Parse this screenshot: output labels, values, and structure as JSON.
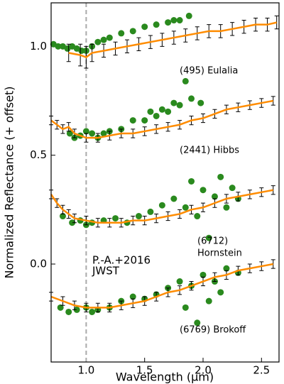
{
  "chart_data": {
    "type": "scatter",
    "xlabel": "Wavelength (μm)",
    "ylabel": "Normalized Reflectance (+ offset)",
    "xlim": [
      0.7,
      2.65
    ],
    "ylim": [
      -0.45,
      1.2
    ],
    "xticks": [
      {
        "value": 1.0,
        "label": "1.0"
      },
      {
        "value": 1.5,
        "label": "1.5"
      },
      {
        "value": 2.0,
        "label": "2.0"
      },
      {
        "value": 2.5,
        "label": "2.5"
      }
    ],
    "yticks": [
      {
        "value": 0.0,
        "label": "0.0"
      },
      {
        "value": 0.5,
        "label": "0.5"
      },
      {
        "value": 1.0,
        "label": "1.0"
      }
    ],
    "vlines": [
      1.0
    ],
    "annotations": [
      "(495) Eulalia",
      "(2441) Hibbs",
      "(6712)",
      "Hornstein",
      "(6769) Brokoff"
    ],
    "series": [
      {
        "name": "P.-A.+2016",
        "type": "scatter",
        "color": "#2a8a1e",
        "x": [
          0.72,
          0.76,
          0.8,
          0.84,
          0.88,
          0.92,
          0.96,
          1.0,
          1.05,
          1.1,
          1.15,
          1.2,
          1.3,
          1.4,
          1.5,
          1.6,
          1.7,
          1.75,
          1.8,
          1.88
        ],
        "values": [
          1.01,
          1.0,
          1.0,
          0.99,
          1.0,
          0.99,
          0.98,
          0.98,
          1.0,
          1.02,
          1.03,
          1.04,
          1.06,
          1.07,
          1.09,
          1.1,
          1.11,
          1.12,
          1.12,
          1.14
        ]
      },
      {
        "name": "JWST",
        "type": "line",
        "color": "#ff8c00",
        "x": [
          0.85,
          0.95,
          1.0,
          1.05,
          1.15,
          1.25,
          1.35,
          1.45,
          1.55,
          1.65,
          1.75,
          1.85,
          1.95,
          2.05,
          2.15,
          2.25,
          2.35,
          2.45,
          2.55,
          2.63
        ],
        "values": [
          0.97,
          0.96,
          0.95,
          0.97,
          0.98,
          0.99,
          1.0,
          1.01,
          1.02,
          1.03,
          1.04,
          1.05,
          1.06,
          1.07,
          1.07,
          1.08,
          1.09,
          1.1,
          1.1,
          1.11
        ],
        "errors": [
          0.04,
          0.05,
          0.05,
          0.04,
          0.03,
          0.03,
          0.03,
          0.03,
          0.03,
          0.03,
          0.03,
          0.03,
          0.03,
          0.03,
          0.03,
          0.03,
          0.03,
          0.03,
          0.03,
          0.03
        ]
      },
      {
        "name": "P.-A.+2016",
        "type": "scatter",
        "color": "#2a8a1e",
        "x": [
          0.86,
          0.9,
          0.95,
          1.0,
          1.05,
          1.1,
          1.15,
          1.2,
          1.3,
          1.4,
          1.5,
          1.55,
          1.6,
          1.65,
          1.7,
          1.75,
          1.8,
          1.85,
          1.9,
          1.98
        ],
        "values": [
          0.6,
          0.58,
          0.59,
          0.61,
          0.6,
          0.58,
          0.6,
          0.61,
          0.62,
          0.66,
          0.66,
          0.7,
          0.68,
          0.71,
          0.7,
          0.74,
          0.73,
          0.84,
          0.76,
          0.74
        ]
      },
      {
        "name": "JWST",
        "type": "line",
        "color": "#ff8c00",
        "x": [
          0.7,
          0.75,
          0.8,
          0.85,
          0.9,
          1.0,
          1.1,
          1.2,
          1.3,
          1.4,
          1.5,
          1.6,
          1.7,
          1.8,
          1.9,
          2.0,
          2.1,
          2.2,
          2.3,
          2.4,
          2.5,
          2.6
        ],
        "values": [
          0.66,
          0.64,
          0.62,
          0.63,
          0.6,
          0.58,
          0.58,
          0.59,
          0.6,
          0.6,
          0.61,
          0.62,
          0.63,
          0.64,
          0.66,
          0.67,
          0.69,
          0.71,
          0.72,
          0.73,
          0.74,
          0.75
        ],
        "errors": [
          0.02,
          0.02,
          0.02,
          0.02,
          0.02,
          0.02,
          0.02,
          0.02,
          0.02,
          0.02,
          0.02,
          0.02,
          0.02,
          0.02,
          0.02,
          0.02,
          0.02,
          0.02,
          0.02,
          0.02,
          0.02,
          0.02
        ]
      },
      {
        "name": "P.-A.+2016",
        "type": "scatter",
        "color": "#2a8a1e",
        "x": [
          0.8,
          0.88,
          0.95,
          1.0,
          1.05,
          1.15,
          1.25,
          1.35,
          1.45,
          1.55,
          1.65,
          1.75,
          1.85,
          1.9,
          1.95,
          2.0,
          2.05,
          2.1,
          2.15,
          2.2,
          2.25,
          2.3
        ],
        "values": [
          0.22,
          0.19,
          0.2,
          0.18,
          0.19,
          0.2,
          0.21,
          0.19,
          0.22,
          0.24,
          0.27,
          0.3,
          0.26,
          0.38,
          0.22,
          0.34,
          0.12,
          0.31,
          0.4,
          0.26,
          0.35,
          0.3
        ]
      },
      {
        "name": "JWST",
        "type": "line",
        "color": "#ff8c00",
        "x": [
          0.7,
          0.75,
          0.8,
          0.85,
          0.9,
          1.0,
          1.1,
          1.2,
          1.3,
          1.4,
          1.5,
          1.6,
          1.7,
          1.8,
          1.9,
          2.0,
          2.1,
          2.2,
          2.3,
          2.4,
          2.5,
          2.6
        ],
        "values": [
          0.32,
          0.28,
          0.25,
          0.23,
          0.21,
          0.2,
          0.19,
          0.19,
          0.19,
          0.2,
          0.2,
          0.21,
          0.22,
          0.23,
          0.25,
          0.26,
          0.28,
          0.3,
          0.31,
          0.32,
          0.33,
          0.34
        ],
        "errors": [
          0.02,
          0.02,
          0.02,
          0.02,
          0.02,
          0.02,
          0.02,
          0.02,
          0.02,
          0.02,
          0.02,
          0.02,
          0.02,
          0.02,
          0.02,
          0.02,
          0.02,
          0.02,
          0.02,
          0.02,
          0.02,
          0.02
        ]
      },
      {
        "name": "P.-A.+2016",
        "type": "scatter",
        "color": "#2a8a1e",
        "x": [
          0.78,
          0.85,
          0.92,
          1.0,
          1.05,
          1.1,
          1.2,
          1.3,
          1.4,
          1.5,
          1.6,
          1.7,
          1.8,
          1.85,
          1.9,
          1.95,
          2.0,
          2.05,
          2.1,
          2.15,
          2.2,
          2.3
        ],
        "values": [
          -0.2,
          -0.22,
          -0.21,
          -0.2,
          -0.22,
          -0.21,
          -0.2,
          -0.17,
          -0.15,
          -0.16,
          -0.14,
          -0.11,
          -0.08,
          -0.2,
          -0.1,
          -0.27,
          -0.05,
          -0.17,
          -0.08,
          -0.13,
          -0.02,
          -0.04
        ]
      },
      {
        "name": "JWST",
        "type": "line",
        "color": "#ff8c00",
        "x": [
          0.7,
          0.8,
          0.9,
          1.0,
          1.1,
          1.2,
          1.3,
          1.4,
          1.5,
          1.6,
          1.7,
          1.8,
          1.9,
          2.0,
          2.1,
          2.2,
          2.3,
          2.4,
          2.5,
          2.6
        ],
        "values": [
          -0.15,
          -0.17,
          -0.19,
          -0.2,
          -0.2,
          -0.2,
          -0.19,
          -0.18,
          -0.17,
          -0.15,
          -0.13,
          -0.12,
          -0.1,
          -0.08,
          -0.06,
          -0.05,
          -0.03,
          -0.02,
          -0.01,
          0.0
        ],
        "errors": [
          0.02,
          0.02,
          0.02,
          0.02,
          0.02,
          0.02,
          0.02,
          0.02,
          0.02,
          0.02,
          0.02,
          0.02,
          0.02,
          0.02,
          0.02,
          0.02,
          0.02,
          0.02,
          0.02,
          0.02
        ]
      }
    ]
  }
}
